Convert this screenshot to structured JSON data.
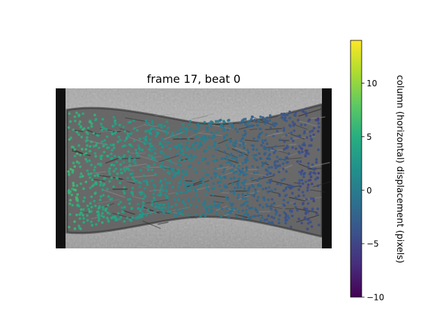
{
  "chart_data": {
    "type": "scatter",
    "title": "frame 17, beat 0",
    "image_description_hidden": "",
    "colorbar": {
      "label": "column (horizontal) displacement (pixels)",
      "colormap": "viridis",
      "range": [
        -10,
        14
      ],
      "ticks": [
        -10,
        -5,
        0,
        5,
        10
      ]
    },
    "series": [
      {
        "trend": {
          "x_range": [
            0,
            1
          ],
          "value_at_left": 6,
          "value_at_right": -5
        }
      }
    ],
    "axes_visible": false,
    "grid": false
  }
}
